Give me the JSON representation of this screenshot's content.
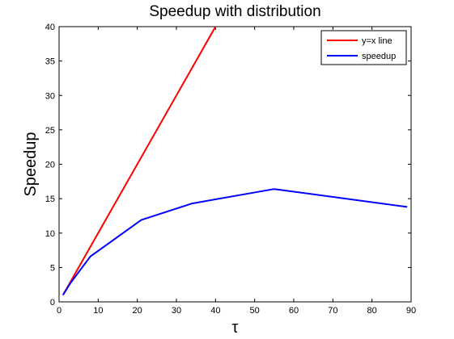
{
  "chart_data": {
    "type": "line",
    "title": "Speedup with distribution",
    "xlabel": "τ",
    "ylabel": "Speedup",
    "xlim": [
      0,
      90
    ],
    "ylim": [
      0,
      40
    ],
    "xticks": [
      0,
      10,
      20,
      30,
      40,
      50,
      60,
      70,
      80,
      90
    ],
    "yticks": [
      0,
      5,
      10,
      15,
      20,
      25,
      30,
      35,
      40
    ],
    "grid": false,
    "legend_position": "top-right",
    "series": [
      {
        "name": "y=x line",
        "color": "#ff0000",
        "x": [
          1,
          40
        ],
        "y": [
          1,
          40
        ]
      },
      {
        "name": "speedup",
        "color": "#0000ff",
        "x": [
          1,
          3,
          8,
          21,
          34,
          55,
          89
        ],
        "y": [
          1.0,
          2.8,
          6.6,
          11.9,
          14.3,
          16.4,
          13.8
        ]
      }
    ]
  }
}
